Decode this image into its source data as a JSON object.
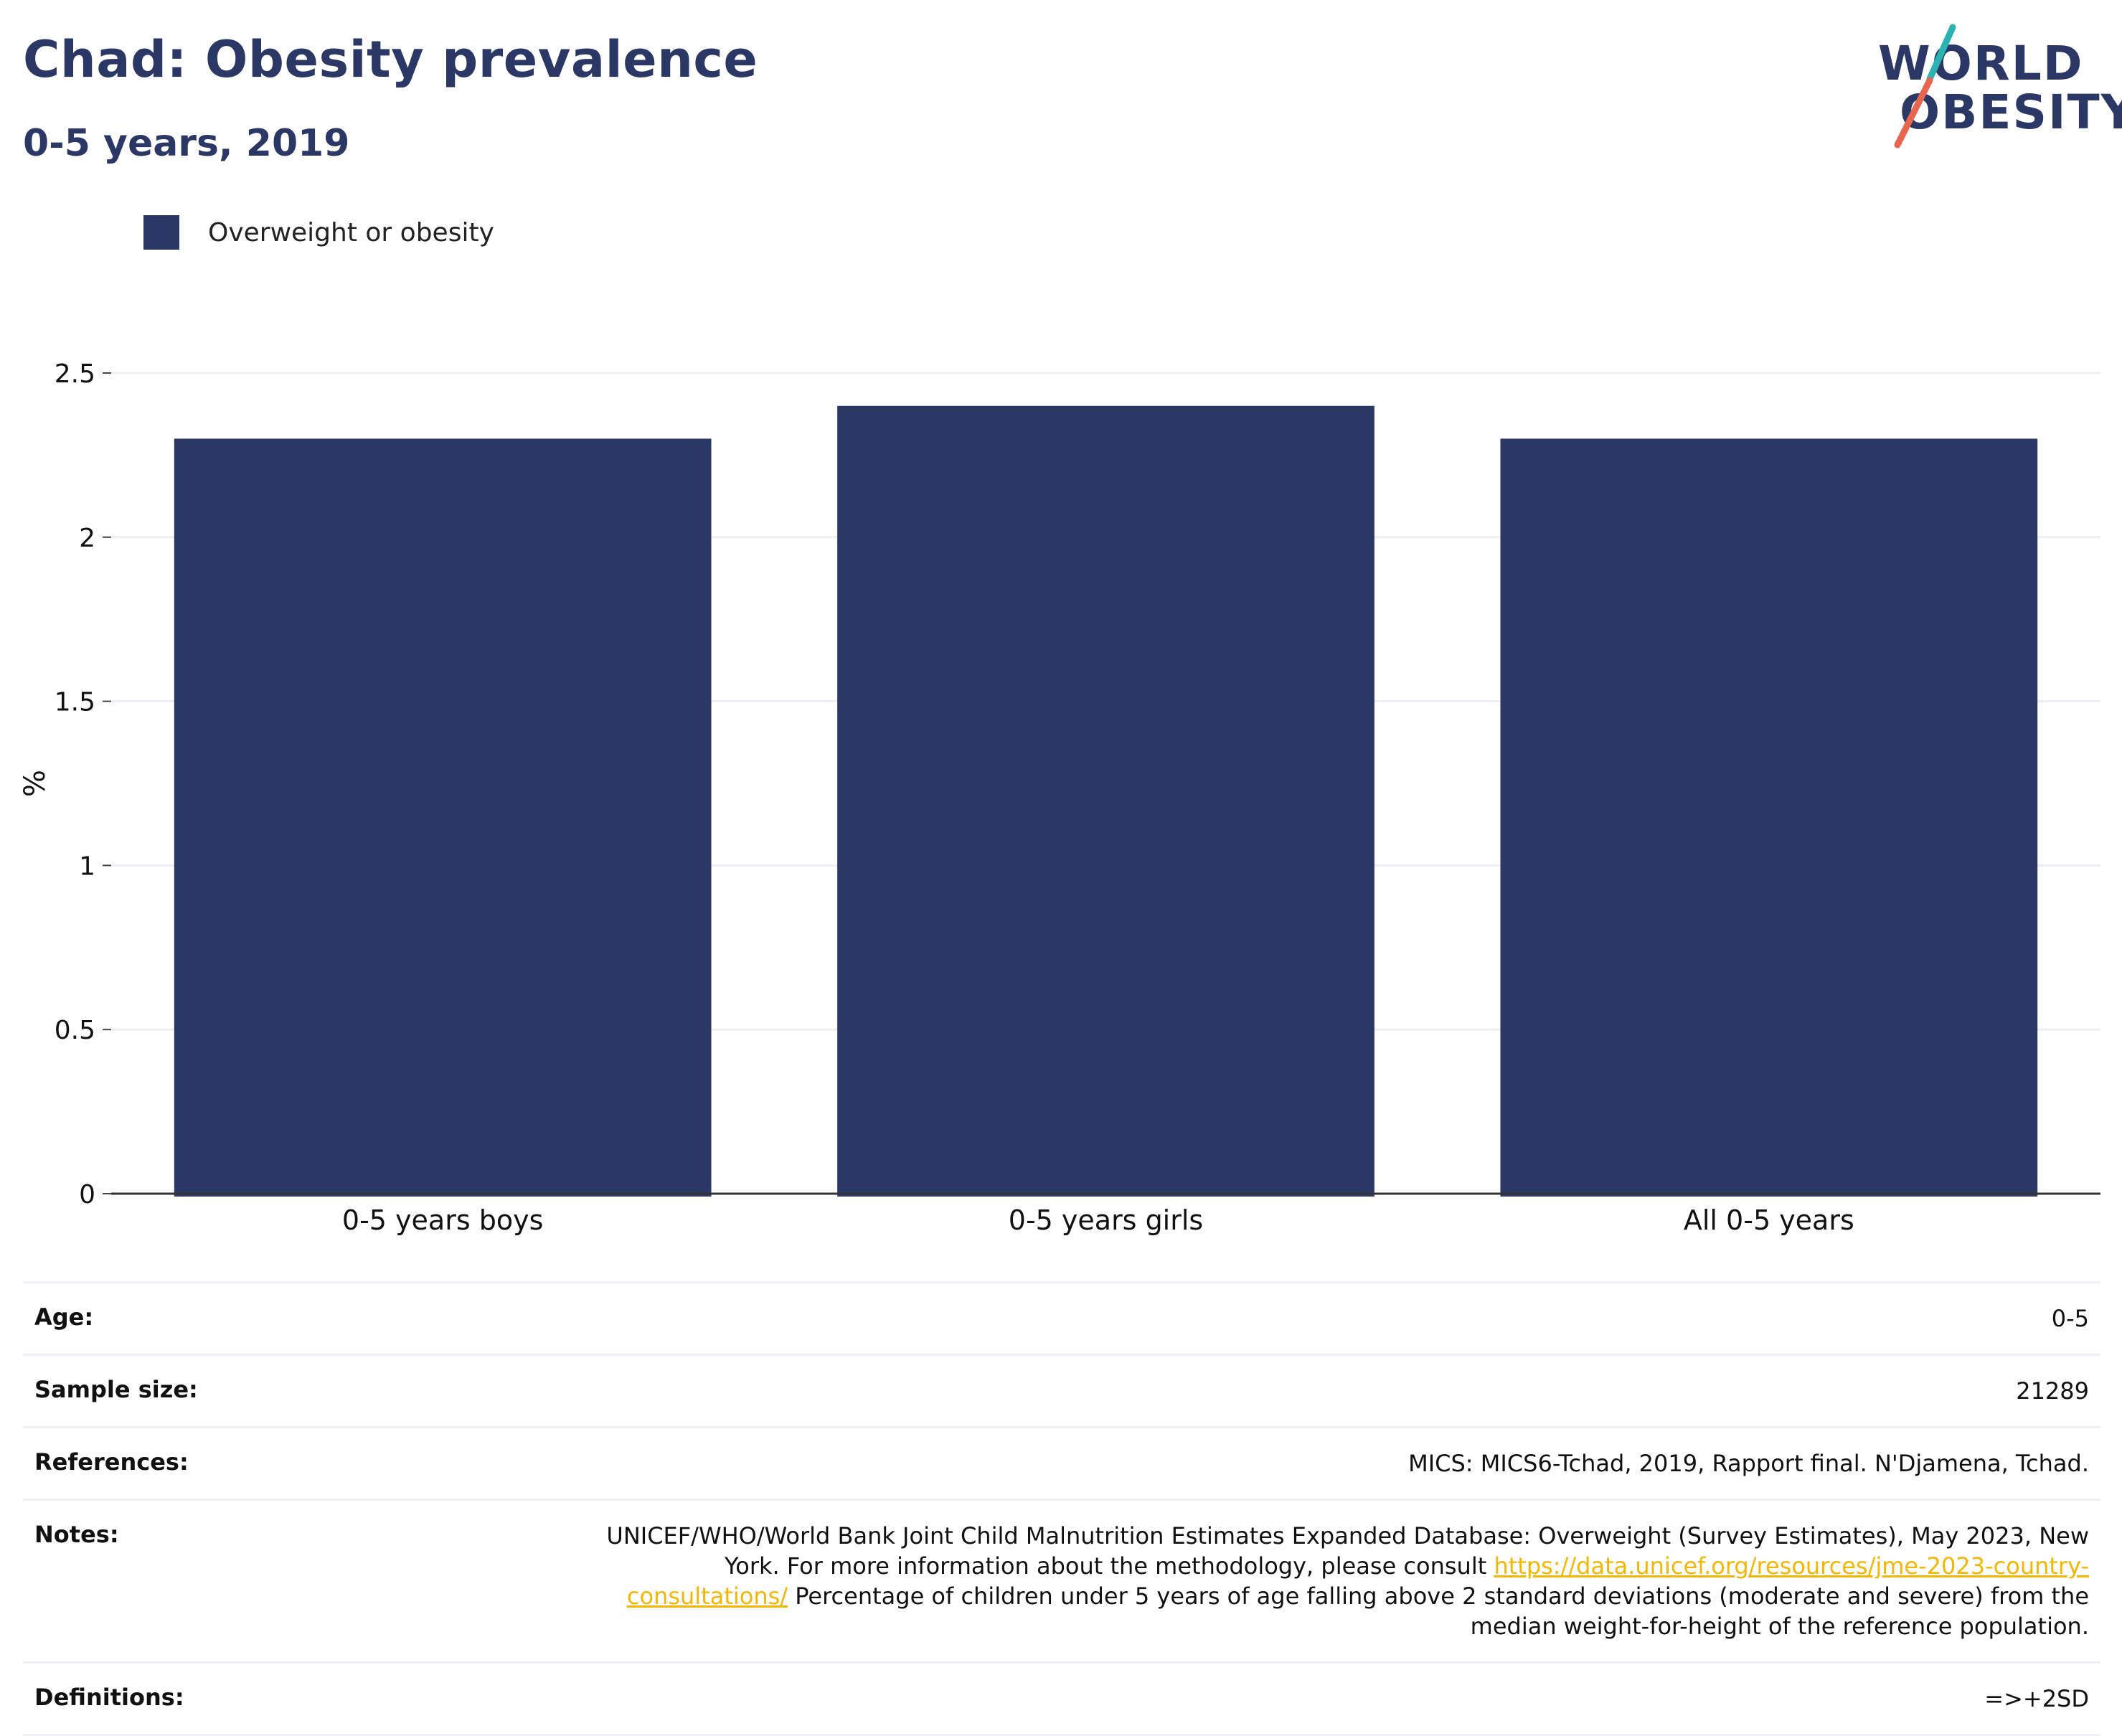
{
  "header": {
    "title": "Chad: Obesity prevalence",
    "subtitle": "0-5 years, 2019"
  },
  "logo": {
    "line1": "WORLD",
    "line2": "OBESITY",
    "colors": {
      "text": "#2b3764",
      "slash_teal": "#2ab3b1",
      "slash_coral": "#e8654f"
    }
  },
  "chart_data": {
    "type": "bar",
    "categories": [
      "0-5 years boys",
      "0-5 years girls",
      "All 0-5 years"
    ],
    "series": [
      {
        "name": "Overweight or obesity",
        "values": [
          2.3,
          2.4,
          2.3
        ],
        "color": "#2b3764"
      }
    ],
    "xlabel": "",
    "ylabel": "%",
    "ylim": [
      0,
      2.5
    ],
    "yticks": [
      0,
      0.5,
      1,
      1.5,
      2,
      2.5
    ],
    "ytick_labels": [
      "0",
      "0.5",
      "1",
      "1.5",
      "2",
      "2.5"
    ],
    "grid": true,
    "legend_position": "top-left"
  },
  "info": {
    "rows": [
      {
        "key": "Age:",
        "value": "0-5"
      },
      {
        "key": "Sample size:",
        "value": "21289"
      },
      {
        "key": "References:",
        "value": "MICS: MICS6-Tchad, 2019, Rapport final. N'Djamena, Tchad."
      }
    ],
    "notes": {
      "key": "Notes:",
      "text_before": "UNICEF/WHO/World Bank Joint Child Malnutrition Estimates Expanded Database: Overweight (Survey Estimates), May 2023, New York. For more information about the methodology, please consult ",
      "link": "https://data.unicef.org/resources/jme-2023-country-consultations/",
      "text_after": " Percentage of children under 5 years of age falling above 2 standard deviations (moderate and severe) from the median weight-for-height of the reference population."
    },
    "definitions": {
      "key": "Definitions:",
      "value": "=>+2SD"
    }
  }
}
